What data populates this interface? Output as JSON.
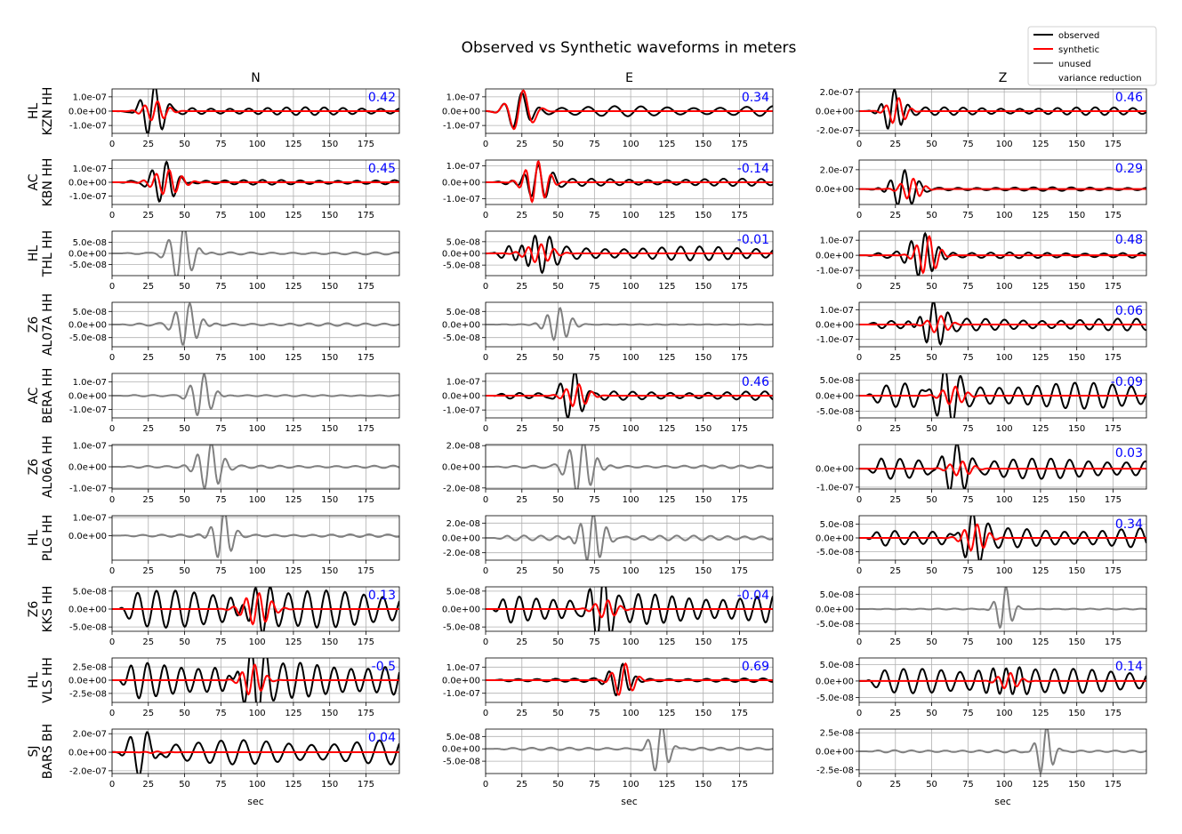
{
  "title": "Observed vs Synthetic waveforms in meters",
  "colors": {
    "observed": "#000000",
    "synthetic": "#ff0000",
    "unused": "#808080",
    "vr": "#0000ff",
    "grid": "#b0b0b0"
  },
  "legend": {
    "placement": "top-right",
    "items": [
      {
        "label": "observed",
        "color": "#000000"
      },
      {
        "label": "synthetic",
        "color": "#ff0000"
      },
      {
        "label": "unused",
        "color": "#808080"
      },
      {
        "label": "variance reduction",
        "color": "#0000ff",
        "text_only": true
      }
    ]
  },
  "chart_data": {
    "type": "line",
    "components": [
      "N",
      "E",
      "Z"
    ],
    "xlabel": "sec",
    "xlim": [
      0,
      198
    ],
    "xticks": [
      "0",
      "25",
      "50",
      "75",
      "100",
      "125",
      "150",
      "175"
    ],
    "stations": [
      {
        "label1": "HL",
        "label2": "KZN HH",
        "panels": [
          {
            "used": true,
            "vr": "0.42",
            "yticks": [
              "1.0e-07",
              "0.0e+00",
              "-1.0e-07"
            ],
            "ylim": [
              -1.55e-07,
              1.55e-07
            ],
            "obs": {
              "amp": 1.6e-07,
              "t0": 28,
              "dur": 10,
              "period": 10,
              "tail": 0.17
            },
            "syn": {
              "amp": 7e-08,
              "t0": 30,
              "dur": 10,
              "period": 9
            }
          },
          {
            "used": true,
            "vr": "0.34",
            "yticks": [
              "1.0e-07",
              "0.0e+00",
              "-1.0e-07"
            ],
            "ylim": [
              -1.55e-07,
              1.55e-07
            ],
            "obs": {
              "amp": 1.6e-07,
              "t0": 23,
              "dur": 10,
              "period": 14,
              "tail": 0.22
            },
            "syn": {
              "amp": 1.5e-07,
              "t0": 24,
              "dur": 11,
              "period": 14
            }
          },
          {
            "used": true,
            "vr": "0.46",
            "yticks": [
              "2.0e-07",
              "0.0e+00",
              "-2.0e-07"
            ],
            "ylim": [
              -2.3e-07,
              2.3e-07
            ],
            "obs": {
              "amp": 2.5e-07,
              "t0": 23,
              "dur": 8,
              "period": 10,
              "tail": 0.16
            },
            "syn": {
              "amp": 1.4e-07,
              "t0": 26,
              "dur": 8,
              "period": 9
            }
          }
        ]
      },
      {
        "label1": "AC",
        "label2": "KBN HH",
        "panels": [
          {
            "used": true,
            "vr": "0.45",
            "yticks": [
              "1.0e-07",
              "0.0e+00",
              "-1.0e-07"
            ],
            "ylim": [
              -1.6e-07,
              1.6e-07
            ],
            "obs": {
              "amp": 1.4e-07,
              "t0": 36,
              "dur": 11,
              "period": 10,
              "tail": 0.12
            },
            "syn": {
              "amp": 9e-08,
              "t0": 38,
              "dur": 12,
              "period": 9
            }
          },
          {
            "used": true,
            "vr": "-0.14",
            "yticks": [
              "1.0e-07",
              "0.0e+00",
              "-1.0e-07"
            ],
            "ylim": [
              -1.35e-07,
              1.35e-07
            ],
            "obs": {
              "amp": 1e-07,
              "t0": 35,
              "dur": 12,
              "period": 10,
              "tail": 0.22
            },
            "syn": {
              "amp": 1.3e-07,
              "t0": 35,
              "dur": 10,
              "period": 9
            }
          },
          {
            "used": true,
            "vr": "0.29",
            "yticks": [
              "2.0e-07",
              "0.0e+00"
            ],
            "ylim": [
              -1.6e-07,
              3e-07
            ],
            "obs": {
              "amp": 1.9e-07,
              "t0": 30,
              "dur": 11,
              "period": 10,
              "tail": 0.1
            },
            "syn": {
              "amp": 1.1e-07,
              "t0": 36,
              "dur": 9,
              "period": 9
            }
          }
        ]
      },
      {
        "label1": "HL",
        "label2": "THL HH",
        "panels": [
          {
            "used": false,
            "yticks": [
              "5.0e-08",
              "0.0e+00",
              "-5.0e-08"
            ],
            "ylim": [
              -1e-07,
              1e-07
            ],
            "obs": {
              "amp": 1.3e-07,
              "t0": 48,
              "dur": 10,
              "period": 11,
              "tail": 0.04
            }
          },
          {
            "used": true,
            "vr": "-0.01",
            "yticks": [
              "5.0e-08",
              "0.0e+00",
              "-5.0e-08"
            ],
            "ylim": [
              -9.5e-08,
              9.5e-08
            ],
            "obs": {
              "amp": 8.5e-08,
              "t0": 33,
              "dur": 14,
              "period": 10,
              "tail": 0.35
            },
            "syn": {
              "amp": 4e-08,
              "t0": 37,
              "dur": 12,
              "period": 9
            }
          },
          {
            "used": true,
            "vr": "0.48",
            "yticks": [
              "1.0e-07",
              "0.0e+00",
              "-1.0e-07"
            ],
            "ylim": [
              -1.35e-07,
              1.6e-07
            ],
            "obs": {
              "amp": 1.6e-07,
              "t0": 44,
              "dur": 11,
              "period": 10,
              "tail": 0.12
            },
            "syn": {
              "amp": 1.3e-07,
              "t0": 47,
              "dur": 9,
              "period": 9
            }
          }
        ]
      },
      {
        "label1": "Z6",
        "label2": "AL07A HH",
        "panels": [
          {
            "used": false,
            "yticks": [
              "5.0e-08",
              "0.0e+00",
              "-5.0e-08"
            ],
            "ylim": [
              -8.5e-08,
              8.5e-08
            ],
            "obs": {
              "amp": 8.5e-08,
              "t0": 52,
              "dur": 10,
              "period": 10,
              "tail": 0.06
            }
          },
          {
            "used": false,
            "yticks": [
              "5.0e-08",
              "0.0e+00",
              "-5.0e-08"
            ],
            "ylim": [
              -8.5e-08,
              8.5e-08
            ],
            "obs": {
              "amp": 6.5e-08,
              "t0": 50,
              "dur": 10,
              "period": 9,
              "tail": 0.02
            }
          },
          {
            "used": true,
            "vr": "0.06",
            "yticks": [
              "1.0e-07",
              "0.0e+00",
              "-1.0e-07"
            ],
            "ylim": [
              -1.5e-07,
              1.5e-07
            ],
            "obs": {
              "amp": 1.6e-07,
              "t0": 50,
              "dur": 10,
              "period": 10,
              "tail": 0.25
            },
            "syn": {
              "amp": 6e-08,
              "t0": 55,
              "dur": 9,
              "period": 10
            }
          }
        ]
      },
      {
        "label1": "AC",
        "label2": "BERA HH",
        "panels": [
          {
            "used": false,
            "yticks": [
              "1.0e-07",
              "0.0e+00",
              "-1.0e-07"
            ],
            "ylim": [
              -1.6e-07,
              1.6e-07
            ],
            "obs": {
              "amp": 1.6e-07,
              "t0": 62,
              "dur": 9,
              "period": 10,
              "tail": 0.03
            }
          },
          {
            "used": true,
            "vr": "0.46",
            "yticks": [
              "1.0e-07",
              "0.0e+00",
              "-1.0e-07"
            ],
            "ylim": [
              -1.55e-07,
              1.55e-07
            ],
            "obs": {
              "amp": 1.5e-07,
              "t0": 60,
              "dur": 10,
              "period": 10,
              "tail": 0.2
            },
            "syn": {
              "amp": 8e-08,
              "t0": 63,
              "dur": 10,
              "period": 9
            }
          },
          {
            "used": true,
            "vr": "-0.09",
            "yticks": [
              "5.0e-08",
              "0.0e+00",
              "-5.0e-08"
            ],
            "ylim": [
              -7.2e-08,
              7.2e-08
            ],
            "obs": {
              "amp": 6.5e-08,
              "t0": 58,
              "dur": 14,
              "period": 10,
              "tail": 0.65
            },
            "syn": {
              "amp": 3e-08,
              "t0": 65,
              "dur": 10,
              "period": 9
            }
          }
        ]
      },
      {
        "label1": "Z6",
        "label2": "AL06A HH",
        "panels": [
          {
            "used": false,
            "yticks": [
              "1.0e-07",
              "0.0e+00",
              "-1.0e-07"
            ],
            "ylim": [
              -1.05e-07,
              1.05e-07
            ],
            "obs": {
              "amp": 1.2e-07,
              "t0": 67,
              "dur": 10,
              "period": 10,
              "tail": 0.05
            }
          },
          {
            "used": false,
            "yticks": [
              "2.0e-08",
              "0.0e+00",
              "-2.0e-08"
            ],
            "ylim": [
              -2.1e-08,
              2.1e-08
            ],
            "obs": {
              "amp": 2.6e-08,
              "t0": 66,
              "dur": 11,
              "period": 10,
              "tail": 0.05
            }
          },
          {
            "used": true,
            "vr": "0.03",
            "yticks": [
              "0.0e+00",
              "-1.0e-07"
            ],
            "ylim": [
              -1.1e-07,
              1.3e-07
            ],
            "obs": {
              "amp": 1.1e-07,
              "t0": 66,
              "dur": 12,
              "period": 10,
              "tail": 0.5
            },
            "syn": {
              "amp": 4e-08,
              "t0": 70,
              "dur": 10,
              "period": 9
            }
          }
        ]
      },
      {
        "label1": "HL",
        "label2": "PLG HH",
        "panels": [
          {
            "used": false,
            "yticks": [
              "1.0e-07",
              "0.0e+00"
            ],
            "ylim": [
              -1.35e-07,
              1.1e-07
            ],
            "obs": {
              "amp": 1.5e-07,
              "t0": 76,
              "dur": 8,
              "period": 10,
              "tail": 0.05
            }
          },
          {
            "used": false,
            "yticks": [
              "2.0e-08",
              "0.0e+00",
              "-2.0e-08"
            ],
            "ylim": [
              -3e-08,
              3e-08
            ],
            "obs": {
              "amp": 3.2e-08,
              "t0": 73,
              "dur": 11,
              "period": 9,
              "tail": 0.1
            }
          },
          {
            "used": true,
            "vr": "0.34",
            "yticks": [
              "5.0e-08",
              "0.0e+00",
              "-5.0e-08"
            ],
            "ylim": [
              -8e-08,
              8e-08
            ],
            "obs": {
              "amp": 8e-08,
              "t0": 77,
              "dur": 10,
              "period": 10,
              "tail": 0.45
            },
            "syn": {
              "amp": 5e-08,
              "t0": 80,
              "dur": 10,
              "period": 9
            }
          }
        ]
      },
      {
        "label1": "Z6",
        "label2": "KKS HH",
        "panels": [
          {
            "used": true,
            "vr": "0.13",
            "yticks": [
              "5.0e-08",
              "0.0e+00",
              "-5.0e-08"
            ],
            "ylim": [
              -6.2e-08,
              6.2e-08
            ],
            "obs": {
              "amp": 6.5e-08,
              "t0": 98,
              "dur": 12,
              "period": 10,
              "tail": 0.8
            },
            "syn": {
              "amp": 4.5e-08,
              "t0": 100,
              "dur": 12,
              "period": 9
            }
          },
          {
            "used": true,
            "vr": "-0.04",
            "yticks": [
              "5.0e-08",
              "0.0e+00",
              "-5.0e-08"
            ],
            "ylim": [
              -6.2e-08,
              6.2e-08
            ],
            "obs": {
              "amp": 6.5e-08,
              "t0": 80,
              "dur": 12,
              "period": 9,
              "tail": 0.65
            },
            "syn": {
              "amp": 2.5e-08,
              "t0": 83,
              "dur": 10,
              "period": 9
            }
          },
          {
            "used": false,
            "yticks": [
              "5.0e-08",
              "0.0e+00",
              "-5.0e-08"
            ],
            "ylim": [
              -7.5e-08,
              7.5e-08
            ],
            "obs": {
              "amp": 7.5e-08,
              "t0": 100,
              "dur": 7,
              "period": 9,
              "tail": 0.02
            }
          }
        ]
      },
      {
        "label1": "HL",
        "label2": "VLS HH",
        "panels": [
          {
            "used": true,
            "vr": "-0.5",
            "yticks": [
              "2.5e-08",
              "0.0e+00",
              "-2.5e-08"
            ],
            "ylim": [
              -4.2e-08,
              4.2e-08
            ],
            "obs": {
              "amp": 4.4e-08,
              "t0": 95,
              "dur": 15,
              "period": 9,
              "tail": 0.8
            },
            "syn": {
              "amp": 3e-08,
              "t0": 97,
              "dur": 9,
              "period": 9
            }
          },
          {
            "used": true,
            "vr": "0.69",
            "yticks": [
              "1.0e-07",
              "0.0e+00",
              "-1.0e-07"
            ],
            "ylim": [
              -1.7e-07,
              1.7e-07
            ],
            "obs": {
              "amp": 1.4e-07,
              "t0": 93,
              "dur": 9,
              "period": 10,
              "tail": 0.1
            },
            "syn": {
              "amp": 1.3e-07,
              "t0": 95,
              "dur": 9,
              "period": 10
            }
          },
          {
            "used": true,
            "vr": "0.14",
            "yticks": [
              "5.0e-08",
              "0.0e+00",
              "-5.0e-08"
            ],
            "ylim": [
              -6.5e-08,
              7e-08
            ],
            "obs": {
              "amp": 6.2e-08,
              "t0": 100,
              "dur": 13,
              "period": 10,
              "tail": 0.6
            },
            "syn": {
              "amp": 2.5e-08,
              "t0": 103,
              "dur": 9,
              "period": 9
            }
          }
        ]
      },
      {
        "label1": "SJ",
        "label2": "BARS BH",
        "panels": [
          {
            "used": true,
            "vr": "0.04",
            "yticks": [
              "2.0e-07",
              "0.0e+00",
              "-2.0e-07"
            ],
            "ylim": [
              -2.3e-07,
              2.5e-07
            ],
            "obs": {
              "amp": 2.4e-07,
              "t0": 22,
              "dur": 10,
              "period": 12,
              "tail": 0.55
            },
            "syn": {
              "amp": 1e-08,
              "t0": 30,
              "dur": 8,
              "period": 9
            }
          },
          {
            "used": false,
            "yticks": [
              "5.0e-08",
              "0.0e+00",
              "-5.0e-08"
            ],
            "ylim": [
              -1e-07,
              8e-08
            ],
            "obs": {
              "amp": 1e-07,
              "t0": 120,
              "dur": 8,
              "period": 10,
              "tail": 0.05
            }
          },
          {
            "used": false,
            "yticks": [
              "2.5e-08",
              "0.0e+00",
              "-2.5e-08"
            ],
            "ylim": [
              -3e-08,
              3e-08
            ],
            "obs": {
              "amp": 3.3e-08,
              "t0": 128,
              "dur": 7,
              "period": 9,
              "tail": 0.05
            }
          }
        ]
      }
    ]
  }
}
